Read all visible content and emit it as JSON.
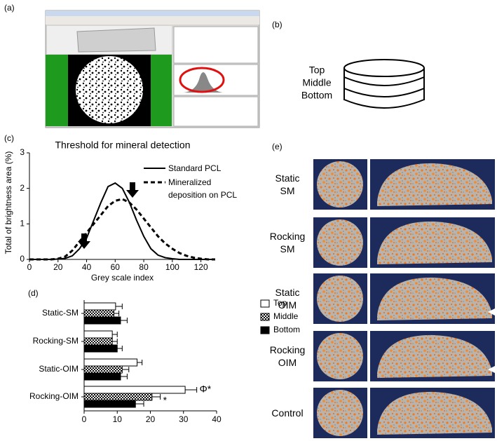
{
  "panels": {
    "a": {
      "label": "(a)"
    },
    "b": {
      "label": "(b)",
      "layers": [
        "Top",
        "Middle",
        "Bottom"
      ]
    },
    "e": {
      "label": "(e)",
      "rows": [
        [
          "Static",
          "SM"
        ],
        [
          "Rocking",
          "SM"
        ],
        [
          "Static",
          "OIM"
        ],
        [
          "Rocking",
          "OIM"
        ],
        [
          "Control"
        ]
      ]
    }
  },
  "chart_data": [
    {
      "type": "line",
      "panel_label": "(c)",
      "title": "Threshold for mineral detection",
      "xlabel": "Grey scale index",
      "ylabel": "Total of brightness area (%)",
      "x": [
        0,
        5,
        10,
        15,
        20,
        25,
        30,
        35,
        40,
        45,
        50,
        55,
        60,
        65,
        70,
        75,
        80,
        85,
        90,
        95,
        100,
        105,
        110,
        115,
        120,
        125,
        130
      ],
      "series": [
        {
          "name": "Standard  PCL",
          "color": "#000000",
          "dashed": false,
          "values": [
            0,
            0,
            0,
            0,
            0.01,
            0.03,
            0.1,
            0.3,
            0.6,
            1.1,
            1.6,
            2.05,
            2.15,
            2.0,
            1.6,
            1.1,
            0.65,
            0.3,
            0.12,
            0.05,
            0.02,
            0,
            0,
            0,
            0,
            0,
            0
          ]
        },
        {
          "name": "Mineralized deposition on PCL",
          "color": "#000000",
          "dashed": true,
          "values": [
            0,
            0,
            0,
            0,
            0.02,
            0.08,
            0.25,
            0.5,
            0.75,
            1.0,
            1.25,
            1.5,
            1.65,
            1.7,
            1.6,
            1.4,
            1.15,
            0.9,
            0.65,
            0.45,
            0.3,
            0.18,
            0.1,
            0.05,
            0.02,
            0,
            0
          ]
        }
      ],
      "xlim": [
        0,
        130
      ],
      "xticks": [
        0,
        20,
        40,
        60,
        80,
        100,
        120
      ],
      "ylim": [
        0,
        3
      ],
      "yticks": [
        0,
        1,
        2,
        3
      ]
    },
    {
      "type": "hbar",
      "panel_label": "(d)",
      "categories": [
        "Static-SM",
        "Rocking-SM",
        "Static-OIM",
        "Rocking-OIM"
      ],
      "series": [
        {
          "name": "Top",
          "color": "#ffffff",
          "pattern": null,
          "values": [
            9.5,
            8.5,
            16,
            30.5
          ],
          "errors": [
            2,
            1.5,
            1.5,
            3.5
          ]
        },
        {
          "name": "Middle",
          "color": "#000000",
          "pattern": "checker",
          "values": [
            9,
            8.5,
            11.5,
            20.5
          ],
          "errors": [
            1.5,
            1.5,
            2,
            2.5
          ]
        },
        {
          "name": "Bottom",
          "color": "#000000",
          "pattern": null,
          "values": [
            11,
            10,
            11,
            15.5
          ],
          "errors": [
            2,
            1.5,
            2,
            2.5
          ]
        }
      ],
      "xlim": [
        0,
        40
      ],
      "xticks": [
        0,
        10,
        20,
        30,
        40
      ],
      "annotations": [
        {
          "series": 0,
          "category": 3,
          "text": "Φ*"
        },
        {
          "series": 1,
          "category": 3,
          "text": "*"
        }
      ]
    }
  ]
}
